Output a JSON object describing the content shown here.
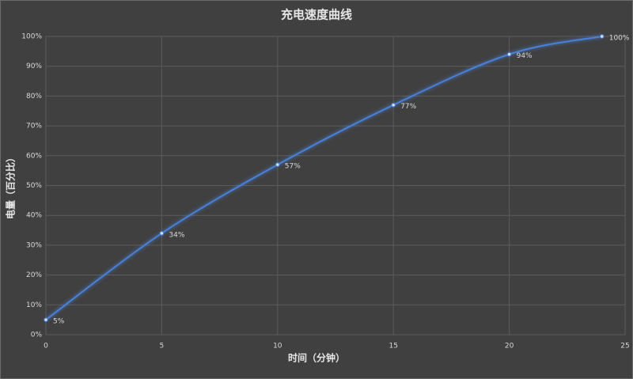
{
  "chart_data": {
    "type": "line",
    "title": "充电速度曲线",
    "x_label": "时间（分钟）",
    "y_label": "电量（百分比）",
    "x": [
      0,
      5,
      10,
      15,
      20,
      24
    ],
    "series": [
      {
        "name": "电量",
        "color": "#4a80d8",
        "values": [
          5,
          34,
          57,
          77,
          94,
          100
        ],
        "value_labels": [
          "5%",
          "34%",
          "57%",
          "77%",
          "94%",
          "100%"
        ]
      }
    ],
    "xlim": [
      0,
      25
    ],
    "xticks": [
      0,
      5,
      10,
      15,
      20,
      25
    ],
    "ylim": [
      0,
      100
    ],
    "yticks": [
      {
        "value": 0,
        "label": "0%"
      },
      {
        "value": 10,
        "label": "10%"
      },
      {
        "value": 20,
        "label": "20%"
      },
      {
        "value": 30,
        "label": "30%"
      },
      {
        "value": 40,
        "label": "40%"
      },
      {
        "value": 50,
        "label": "50%"
      },
      {
        "value": 60,
        "label": "60%"
      },
      {
        "value": 70,
        "label": "70%"
      },
      {
        "value": 80,
        "label": "80%"
      },
      {
        "value": 90,
        "label": "90%"
      },
      {
        "value": 100,
        "label": "100%"
      }
    ],
    "grid": true
  }
}
